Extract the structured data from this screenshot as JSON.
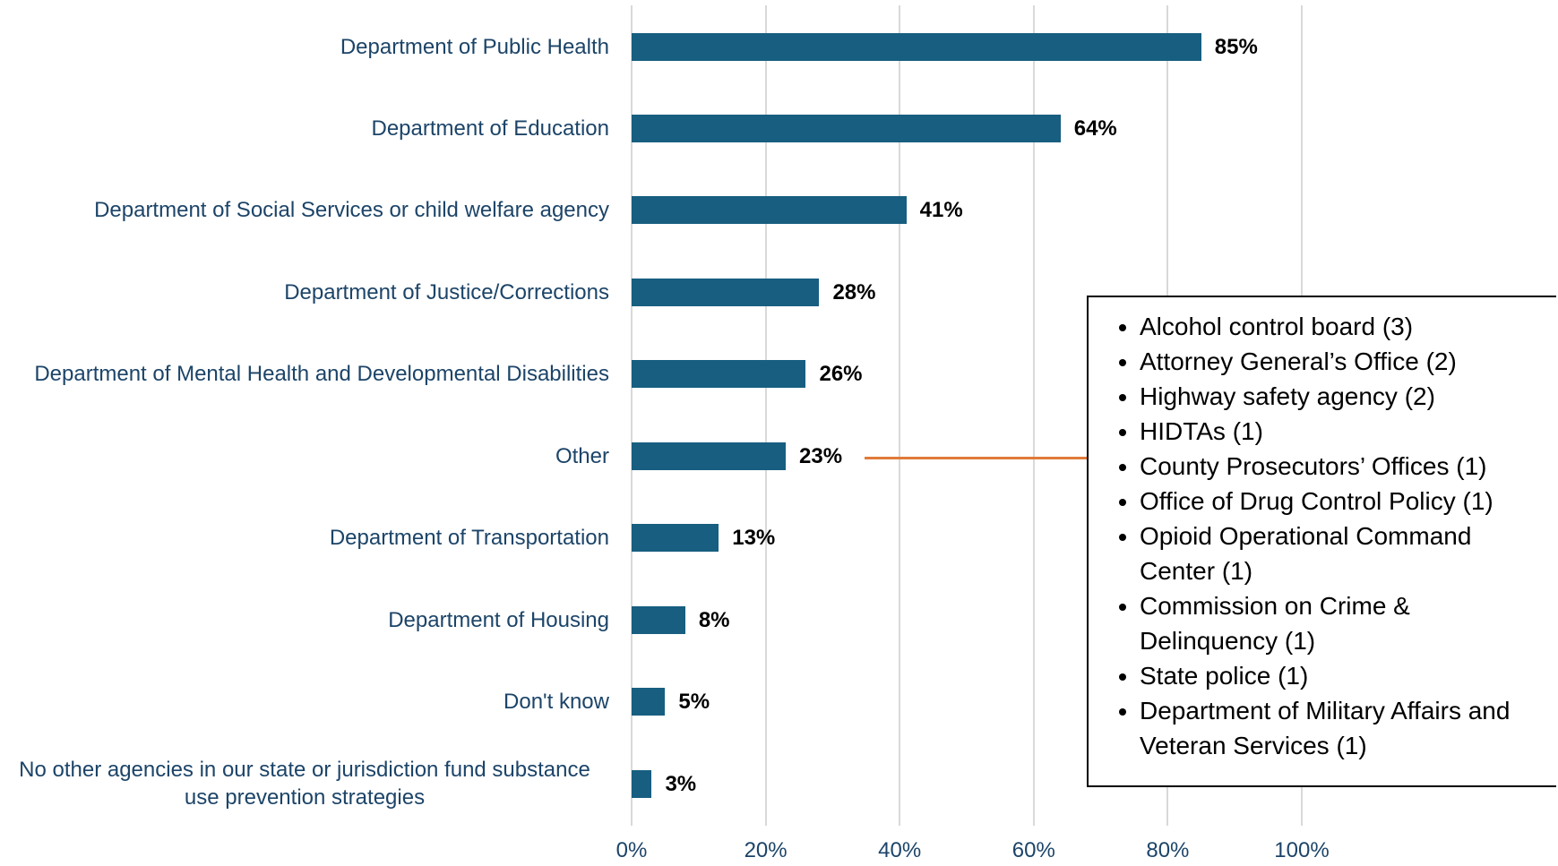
{
  "chart_data": {
    "type": "bar",
    "orientation": "horizontal",
    "categories": [
      "Department of Public Health",
      "Department of Education",
      "Department of Social Services or child welfare agency",
      "Department of Justice/Corrections",
      "Department of Mental Health and Developmental Disabilities",
      "Other",
      "Department of Transportation",
      "Department of Housing",
      "Don't know",
      "No other agencies in our state or jurisdiction fund substance use prevention strategies"
    ],
    "values": [
      85,
      64,
      41,
      28,
      26,
      23,
      13,
      8,
      5,
      3
    ],
    "value_labels": [
      "85%",
      "64%",
      "41%",
      "28%",
      "26%",
      "23%",
      "13%",
      "8%",
      "5%",
      "3%"
    ],
    "color": "#175e80",
    "xlim": [
      0,
      100
    ],
    "xticks": [
      {
        "value": 0,
        "label": "0%"
      },
      {
        "value": 20,
        "label": "20%"
      },
      {
        "value": 40,
        "label": "40%"
      },
      {
        "value": 60,
        "label": "60%"
      },
      {
        "value": 80,
        "label": "80%"
      },
      {
        "value": 100,
        "label": "100%"
      }
    ],
    "grid": true,
    "annotation": {
      "category_index": 5,
      "color": "#e07b39",
      "items": [
        "Alcohol control board (3)",
        "Attorney General’s Office (2)",
        "Highway safety agency (2)",
        "HIDTAs (1)",
        "County Prosecutors’ Offices (1)",
        "Office of Drug Control Policy (1)",
        "Opioid Operational Command Center (1)",
        "Commission on Crime & Delinquency (1)",
        "State police (1)",
        "Department of Military Affairs and Veteran Services (1)"
      ]
    }
  }
}
